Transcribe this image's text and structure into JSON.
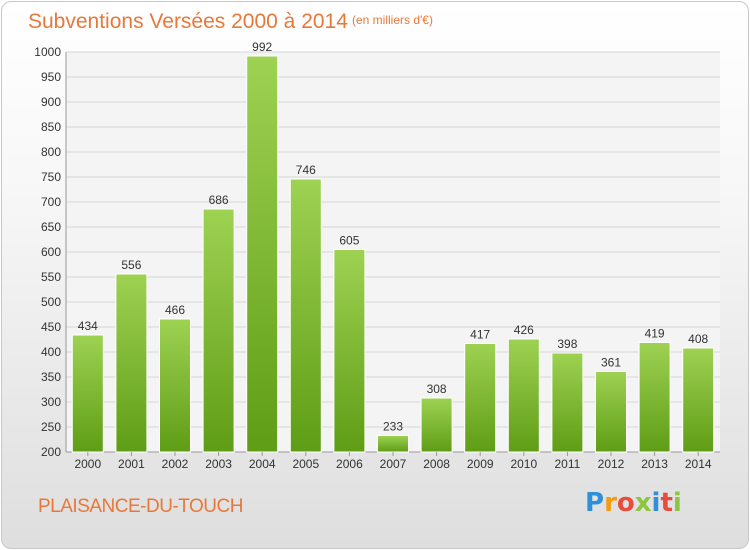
{
  "header": {
    "title": "Subventions Versées 2000 à 2014",
    "unit_note": "(en milliers d'€)"
  },
  "footer": {
    "commune": "PLAISANCE-DU-TOUCH",
    "brand": {
      "letters": [
        "P",
        "r",
        "o",
        "x",
        "i",
        "t",
        "i"
      ],
      "colors": [
        "#2f8fd8",
        "#f39c12",
        "#e74c3c",
        "#8cc63f",
        "#2f8fd8",
        "#e74c3c",
        "#8cc63f"
      ]
    }
  },
  "colors": {
    "bar_top": "#9ed252",
    "bar_bottom": "#5f9d16",
    "title": "#e8783a",
    "grid": "#d6d6d6"
  },
  "chart_data": {
    "type": "bar",
    "title": "Subventions Versées 2000 à 2014",
    "subtitle": "(en milliers d'€)",
    "xlabel": "",
    "ylabel": "",
    "ylim": [
      200,
      1000
    ],
    "yticks": [
      200,
      250,
      300,
      350,
      400,
      450,
      500,
      550,
      600,
      650,
      700,
      750,
      800,
      850,
      900,
      950,
      1000
    ],
    "grid": true,
    "categories": [
      "2000",
      "2001",
      "2002",
      "2003",
      "2004",
      "2005",
      "2006",
      "2007",
      "2008",
      "2009",
      "2010",
      "2011",
      "2012",
      "2013",
      "2014"
    ],
    "values": [
      434,
      556,
      466,
      686,
      992,
      746,
      605,
      233,
      308,
      417,
      426,
      398,
      361,
      419,
      408
    ]
  }
}
